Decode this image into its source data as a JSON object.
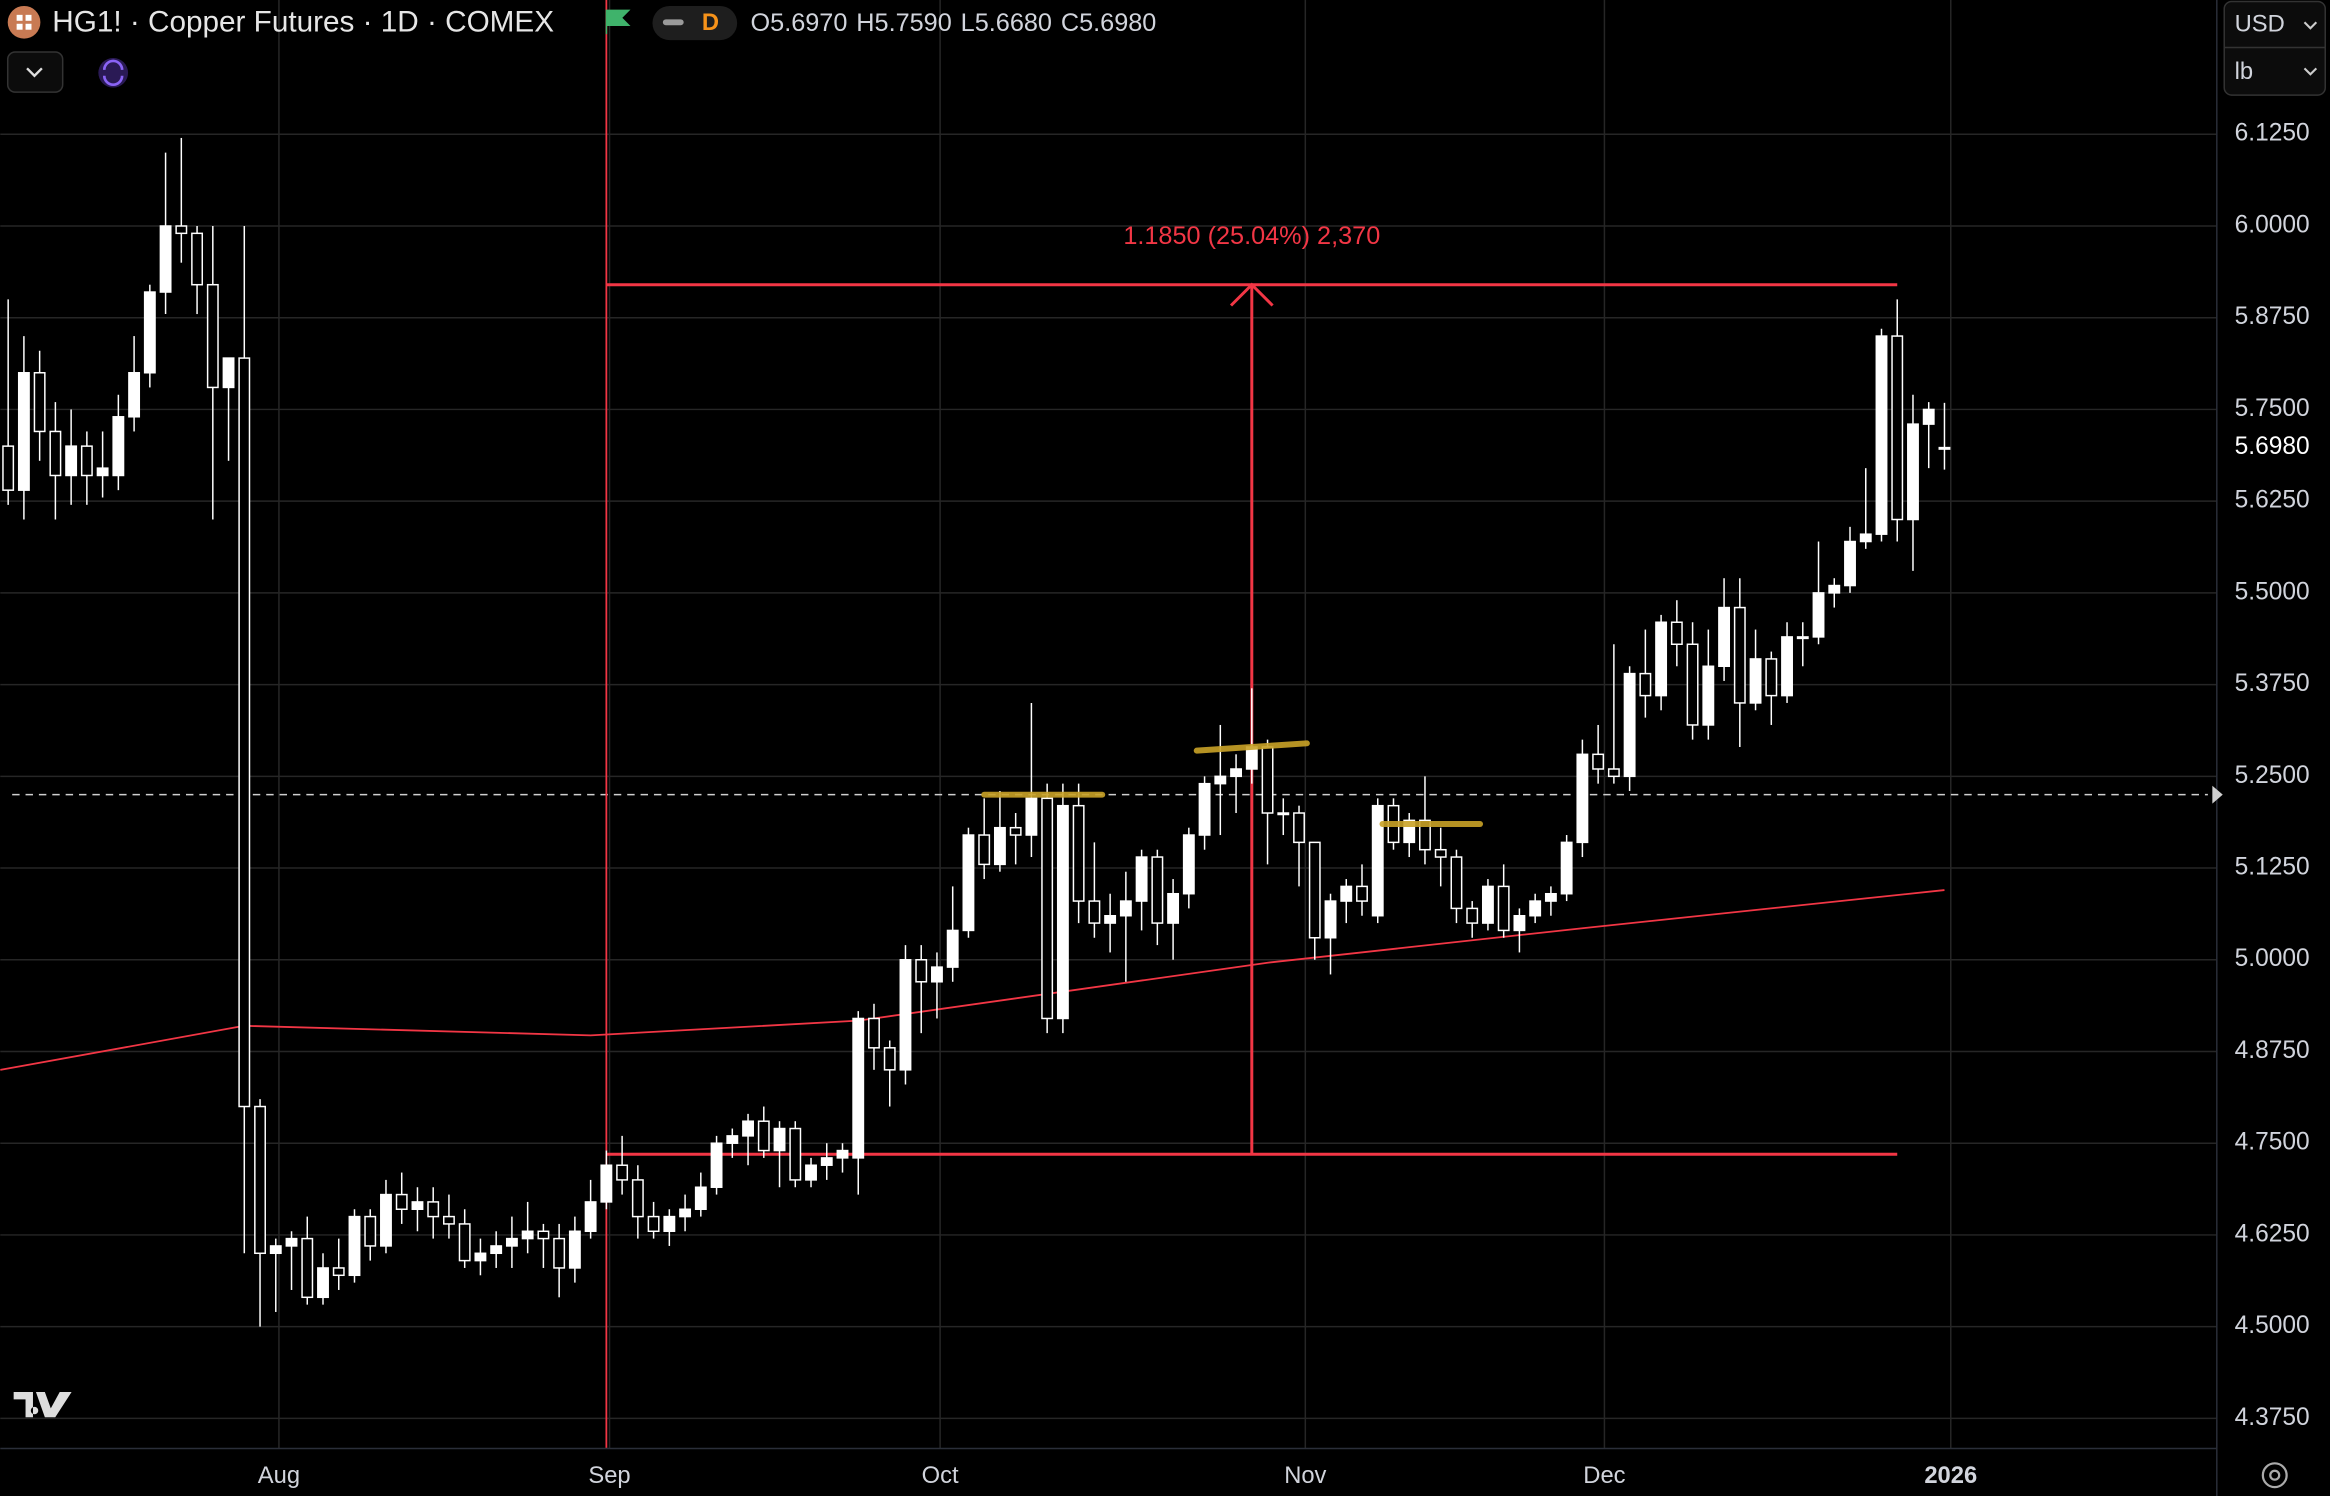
{
  "chart_data": {
    "type": "candlestick",
    "title": "HG1! · Copper Futures · 1D · COMEX",
    "interval_badge": "D",
    "ohlc_labels": [
      "O5.6970",
      "H5.7590",
      "L5.6680",
      "C5.6980"
    ],
    "currency": "USD",
    "unit": "lb",
    "up_color": "#ffffff",
    "down_color": "#000000",
    "open": [
      5.7,
      5.64,
      5.8,
      5.72,
      5.66,
      5.7,
      5.66,
      5.66,
      5.74,
      5.8,
      5.91,
      6.0,
      5.99,
      5.92,
      5.78,
      5.82,
      4.8,
      4.6,
      4.61,
      4.62,
      4.54,
      4.58,
      4.57,
      4.65,
      4.61,
      4.68,
      4.66,
      4.67,
      4.65,
      4.64,
      4.59,
      4.6,
      4.61,
      4.62,
      4.63,
      4.62,
      4.58,
      4.63,
      4.67,
      4.72,
      4.7,
      4.65,
      4.63,
      4.65,
      4.66,
      4.69,
      4.75,
      4.76,
      4.78,
      4.74,
      4.77,
      4.7,
      4.72,
      4.73,
      4.73,
      4.92,
      4.88,
      4.85,
      5.0,
      4.97,
      4.99,
      5.04,
      5.17,
      5.13,
      5.18,
      5.17,
      5.22,
      4.92,
      5.21,
      5.08,
      5.05,
      5.06,
      5.08,
      5.14,
      5.05,
      5.09,
      5.17,
      5.24,
      5.25,
      5.26,
      5.29,
      5.2,
      5.2,
      5.16,
      5.03,
      5.08,
      5.1,
      5.06,
      5.21,
      5.16,
      5.19,
      5.15,
      5.14,
      5.07,
      5.05,
      5.1,
      5.04,
      5.06,
      5.08,
      5.09,
      5.16,
      5.28,
      5.26,
      5.25,
      5.39,
      5.36,
      5.46,
      5.43,
      5.32,
      5.4,
      5.48,
      5.35,
      5.41,
      5.36,
      5.44,
      5.44,
      5.5,
      5.51,
      5.57,
      5.58,
      5.85,
      5.6,
      5.73,
      5.697
    ],
    "high": [
      5.9,
      5.85,
      5.83,
      5.76,
      5.75,
      5.72,
      5.72,
      5.77,
      5.85,
      5.92,
      6.1,
      6.12,
      6.0,
      6.0,
      5.82,
      6.0,
      4.81,
      4.62,
      4.63,
      4.65,
      4.6,
      4.62,
      4.66,
      4.66,
      4.7,
      4.71,
      4.69,
      4.69,
      4.68,
      4.66,
      4.62,
      4.63,
      4.65,
      4.67,
      4.64,
      4.64,
      4.65,
      4.7,
      4.74,
      4.76,
      4.72,
      4.67,
      4.66,
      4.68,
      4.71,
      4.76,
      4.77,
      4.79,
      4.8,
      4.78,
      4.78,
      4.73,
      4.75,
      4.75,
      4.93,
      4.94,
      4.89,
      5.02,
      5.02,
      5.01,
      5.1,
      5.18,
      5.22,
      5.23,
      5.2,
      5.35,
      5.24,
      5.24,
      5.24,
      5.16,
      5.09,
      5.12,
      5.15,
      5.15,
      5.11,
      5.18,
      5.25,
      5.32,
      5.28,
      5.37,
      5.3,
      5.22,
      5.21,
      5.16,
      5.09,
      5.11,
      5.13,
      5.22,
      5.22,
      5.2,
      5.25,
      5.18,
      5.15,
      5.08,
      5.11,
      5.13,
      5.07,
      5.09,
      5.1,
      5.17,
      5.3,
      5.32,
      5.43,
      5.4,
      5.45,
      5.47,
      5.49,
      5.46,
      5.45,
      5.52,
      5.52,
      5.45,
      5.42,
      5.46,
      5.46,
      5.57,
      5.52,
      5.59,
      5.67,
      5.86,
      5.9,
      5.77,
      5.76,
      5.759
    ],
    "low": [
      5.62,
      5.6,
      5.68,
      5.6,
      5.62,
      5.62,
      5.63,
      5.64,
      5.72,
      5.78,
      5.88,
      5.95,
      5.88,
      5.6,
      5.68,
      4.6,
      4.5,
      4.52,
      4.55,
      4.53,
      4.53,
      4.55,
      4.56,
      4.59,
      4.6,
      4.64,
      4.63,
      4.62,
      4.62,
      4.58,
      4.57,
      4.58,
      4.58,
      4.6,
      4.58,
      4.54,
      4.56,
      4.62,
      4.66,
      4.68,
      4.62,
      4.62,
      4.61,
      4.63,
      4.65,
      4.68,
      4.73,
      4.72,
      4.73,
      4.69,
      4.69,
      4.69,
      4.7,
      4.71,
      4.68,
      4.85,
      4.8,
      4.83,
      4.9,
      4.92,
      4.97,
      5.03,
      5.11,
      5.12,
      5.13,
      5.14,
      4.9,
      4.9,
      5.05,
      5.03,
      5.01,
      4.97,
      5.04,
      5.02,
      5.0,
      5.07,
      5.15,
      5.17,
      5.2,
      5.24,
      5.13,
      5.17,
      5.1,
      5.0,
      4.98,
      5.05,
      5.06,
      5.05,
      5.15,
      5.14,
      5.13,
      5.1,
      5.05,
      5.03,
      5.04,
      5.03,
      5.01,
      5.05,
      5.06,
      5.08,
      5.14,
      5.24,
      5.24,
      5.23,
      5.33,
      5.34,
      5.4,
      5.3,
      5.3,
      5.38,
      5.29,
      5.34,
      5.32,
      5.35,
      5.4,
      5.43,
      5.48,
      5.5,
      5.56,
      5.57,
      5.57,
      5.53,
      5.67,
      5.668
    ],
    "close": [
      5.64,
      5.8,
      5.72,
      5.66,
      5.7,
      5.66,
      5.67,
      5.74,
      5.8,
      5.91,
      6.0,
      5.99,
      5.92,
      5.78,
      5.82,
      4.8,
      4.6,
      4.61,
      4.62,
      4.54,
      4.58,
      4.57,
      4.65,
      4.61,
      4.68,
      4.66,
      4.67,
      4.65,
      4.64,
      4.59,
      4.6,
      4.61,
      4.62,
      4.63,
      4.62,
      4.58,
      4.63,
      4.67,
      4.72,
      4.7,
      4.65,
      4.63,
      4.65,
      4.66,
      4.69,
      4.75,
      4.76,
      4.78,
      4.74,
      4.77,
      4.7,
      4.72,
      4.73,
      4.74,
      4.92,
      4.88,
      4.85,
      5.0,
      4.97,
      4.99,
      5.04,
      5.17,
      5.13,
      5.18,
      5.17,
      5.22,
      4.92,
      5.21,
      5.08,
      5.05,
      5.06,
      5.08,
      5.14,
      5.05,
      5.09,
      5.17,
      5.24,
      5.25,
      5.26,
      5.29,
      5.2,
      5.2,
      5.16,
      5.03,
      5.08,
      5.1,
      5.08,
      5.21,
      5.16,
      5.19,
      5.15,
      5.14,
      5.07,
      5.05,
      5.1,
      5.04,
      5.06,
      5.08,
      5.09,
      5.16,
      5.28,
      5.26,
      5.25,
      5.39,
      5.36,
      5.46,
      5.43,
      5.32,
      5.4,
      5.48,
      5.35,
      5.41,
      5.36,
      5.44,
      5.44,
      5.5,
      5.51,
      5.57,
      5.58,
      5.85,
      5.6,
      5.73,
      5.75,
      5.698
    ],
    "moving_average": {
      "color": "#f23645",
      "x": [
        -0.5,
        15,
        37,
        54,
        80,
        100,
        123
      ],
      "values": [
        4.85,
        4.91,
        4.897,
        4.917,
        4.996,
        5.043,
        5.095
      ]
    },
    "measure": {
      "label": "1.1850 (25.04%) 2,370",
      "start": 38,
      "end": 120,
      "low": 4.735,
      "high": 5.92,
      "color": "#f23645"
    },
    "levels": [
      {
        "x": [
          62,
          69.5
        ],
        "y": [
          5.225,
          5.225
        ]
      },
      {
        "x": [
          75.5,
          82.5
        ],
        "y": [
          5.285,
          5.295
        ]
      },
      {
        "x": [
          87.3,
          93.5
        ],
        "y": [
          5.185,
          5.185
        ]
      }
    ],
    "level_color": "#c9a227",
    "price_line": 5.225,
    "last_price": {
      "value": 5.698,
      "label": "5.6980"
    },
    "xlim": [
      -0.5,
      140.3
    ],
    "ylim": [
      4.334,
      6.308
    ],
    "xticks": [
      {
        "value": 17.2,
        "label": "Aug"
      },
      {
        "value": 38.2,
        "label": "Sep"
      },
      {
        "value": 59.2,
        "label": "Oct"
      },
      {
        "value": 82.4,
        "label": "Nov"
      },
      {
        "value": 101.4,
        "label": "Dec"
      },
      {
        "value": 123.4,
        "label": "2026"
      }
    ],
    "yticks": [
      {
        "value": 4.375,
        "label": "4.3750"
      },
      {
        "value": 4.5,
        "label": "4.5000"
      },
      {
        "value": 4.625,
        "label": "4.6250"
      },
      {
        "value": 4.75,
        "label": "4.7500"
      },
      {
        "value": 4.875,
        "label": "4.8750"
      },
      {
        "value": 5,
        "label": "5.0000"
      },
      {
        "value": 5.125,
        "label": "5.1250"
      },
      {
        "value": 5.25,
        "label": "5.2500"
      },
      {
        "value": 5.375,
        "label": "5.3750"
      },
      {
        "value": 5.5,
        "label": "5.5000"
      },
      {
        "value": 5.625,
        "label": "5.6250"
      },
      {
        "value": 5.75,
        "label": "5.7500"
      },
      {
        "value": 5.875,
        "label": "5.8750"
      },
      {
        "value": 6,
        "label": "6.0000"
      },
      {
        "value": 6.125,
        "label": "6.1250"
      }
    ],
    "grid": true
  }
}
